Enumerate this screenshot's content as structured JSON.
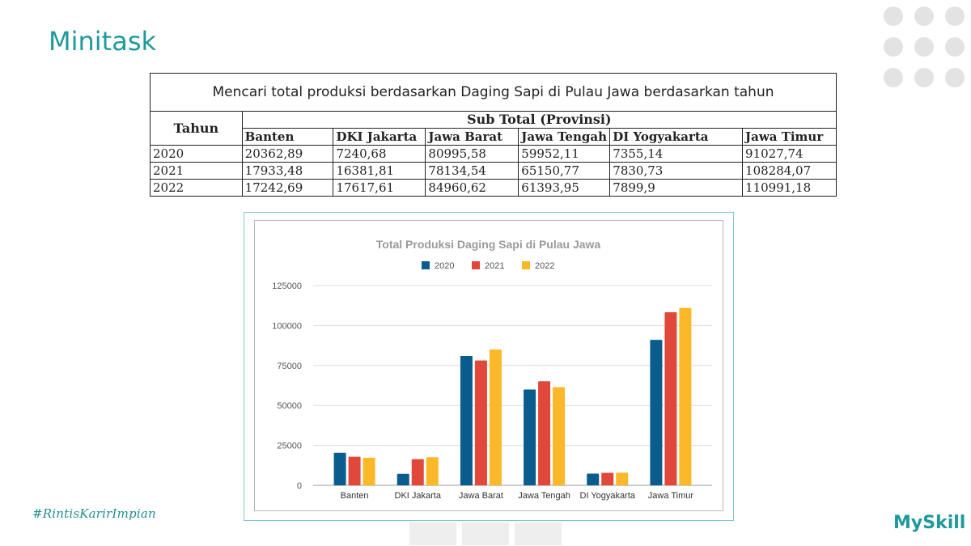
{
  "slide": {
    "title": "Minitask",
    "hashtag": "#RintisKarirImpian",
    "brand": "MySkill"
  },
  "table": {
    "caption": "Mencari total produksi berdasarkan Daging Sapi di Pulau Jawa berdasarkan tahun",
    "year_header": "Tahun",
    "group_header": "Sub Total (Provinsi)",
    "columns": [
      "Banten",
      "DKI Jakarta",
      "Jawa Barat",
      "Jawa Tengah",
      "DI Yogyakarta",
      "Jawa Timur"
    ],
    "rows": [
      {
        "year": "2020",
        "cells": [
          "20362,89",
          "7240,68",
          "80995,58",
          "59952,11",
          "7355,14",
          "91027,74"
        ]
      },
      {
        "year": "2021",
        "cells": [
          "17933,48",
          "16381,81",
          "78134,54",
          "65150,77",
          "7830,73",
          "108284,07"
        ]
      },
      {
        "year": "2022",
        "cells": [
          "17242,69",
          "17617,61",
          "84960,62",
          "61393,95",
          "7899,9",
          "110991,18"
        ]
      }
    ]
  },
  "chart_data": {
    "type": "bar",
    "title": "Total Produksi Daging Sapi di Pulau Jawa",
    "categories": [
      "Banten",
      "DKI Jakarta",
      "Jawa Barat",
      "Jawa Tengah",
      "DI Yogyakarta",
      "Jawa Timur"
    ],
    "series": [
      {
        "name": "2020",
        "color": "#0b5c8e",
        "values": [
          20362.89,
          7240.68,
          80995.58,
          59952.11,
          7355.14,
          91027.74
        ]
      },
      {
        "name": "2021",
        "color": "#e0483b",
        "values": [
          17933.48,
          16381.81,
          78134.54,
          65150.77,
          7830.73,
          108284.07
        ]
      },
      {
        "name": "2022",
        "color": "#fbb829",
        "values": [
          17242.69,
          17617.61,
          84960.62,
          61393.95,
          7899.9,
          110991.18
        ]
      }
    ],
    "ylim": [
      0,
      125000
    ],
    "yticks": [
      0,
      25000,
      50000,
      75000,
      100000,
      125000
    ],
    "ytick_labels": [
      "0",
      "25000",
      "50000",
      "75000",
      "100000",
      "125000"
    ],
    "grid": true,
    "legend_position": "top-center",
    "xlabel": "",
    "ylabel": ""
  }
}
